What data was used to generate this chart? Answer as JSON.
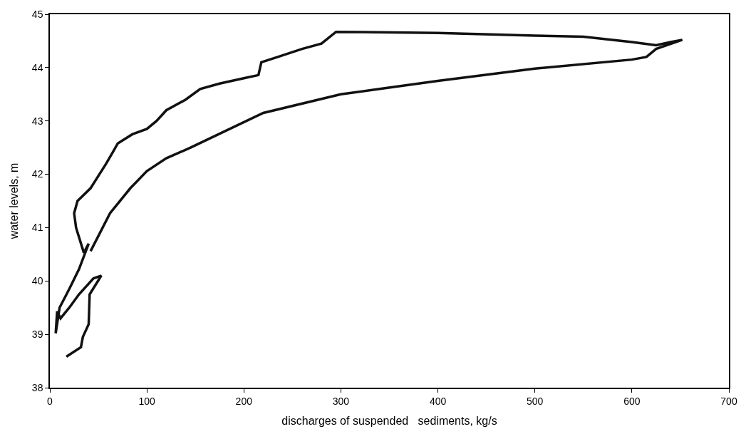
{
  "chart_data": {
    "type": "line",
    "xlabel": "discharges of suspended   sediments, kg/s",
    "ylabel": "water levels, m",
    "xlim": [
      0,
      700
    ],
    "xticks": [
      0,
      100,
      200,
      300,
      400,
      500,
      600,
      700
    ],
    "ylim": [
      38,
      45
    ],
    "yticks": [
      38,
      39,
      40,
      41,
      42,
      43,
      44,
      45
    ],
    "marker": "none",
    "line_style": "solid",
    "series": [
      {
        "color": "#111111",
        "x": [
          17,
          32,
          34,
          40,
          41,
          53,
          45,
          30,
          20,
          11,
          7.5,
          6,
          10,
          20,
          30,
          40,
          35,
          27,
          25,
          28.5,
          42,
          58,
          66,
          70,
          85,
          100,
          110,
          120,
          140,
          155,
          175,
          200,
          215,
          218,
          235,
          260,
          280,
          295,
          400,
          500,
          550,
          600,
          625,
          640,
          652,
          625,
          615,
          600,
          500,
          400,
          340,
          300,
          220,
          160,
          145,
          120,
          100,
          83,
          62,
          42
        ],
        "values": [
          38.58,
          38.76,
          38.95,
          39.19,
          39.75,
          40.1,
          40.05,
          39.75,
          39.5,
          39.3,
          39.43,
          39.02,
          39.5,
          39.85,
          40.22,
          40.7,
          40.53,
          41.0,
          41.27,
          41.5,
          41.74,
          42.2,
          42.45,
          42.58,
          42.75,
          42.85,
          43.0,
          43.2,
          43.4,
          43.6,
          43.7,
          43.8,
          43.86,
          44.1,
          44.2,
          44.35,
          44.45,
          44.67,
          44.65,
          44.6,
          44.58,
          44.48,
          44.42,
          44.48,
          44.52,
          44.35,
          44.2,
          44.15,
          43.98,
          43.75,
          43.6,
          43.5,
          43.15,
          42.63,
          42.5,
          42.3,
          42.06,
          41.74,
          41.27,
          40.56
        ]
      }
    ]
  }
}
